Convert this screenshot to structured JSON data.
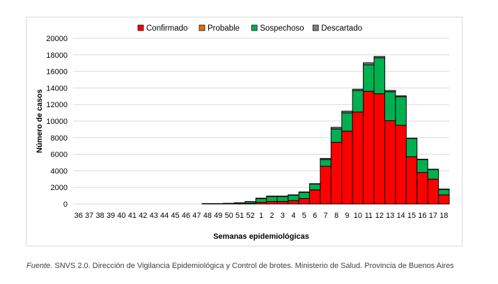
{
  "chart_data": {
    "type": "bar",
    "stacked": true,
    "title": "",
    "xlabel": "Semanas epidemiológicas",
    "ylabel": "Número de casos",
    "ylim": [
      0,
      20000
    ],
    "yticks": [
      0,
      2000,
      4000,
      6000,
      8000,
      10000,
      12000,
      14000,
      16000,
      18000,
      20000
    ],
    "grid": true,
    "legend": "top",
    "categories": [
      "36",
      "37",
      "38",
      "39",
      "40",
      "41",
      "42",
      "43",
      "44",
      "45",
      "46",
      "47",
      "48",
      "49",
      "50",
      "51",
      "52",
      "1",
      "2",
      "3",
      "4",
      "5",
      "6",
      "7",
      "8",
      "9",
      "10",
      "11",
      "12",
      "13",
      "14",
      "15",
      "16",
      "17",
      "18"
    ],
    "series": [
      {
        "name": "Confirmado",
        "color": "#ff0000",
        "values": [
          0,
          0,
          0,
          0,
          0,
          0,
          0,
          0,
          0,
          0,
          0,
          0,
          20,
          20,
          30,
          50,
          100,
          200,
          300,
          300,
          400,
          650,
          1700,
          4550,
          7450,
          8800,
          11100,
          13600,
          13300,
          10050,
          9500,
          5700,
          3800,
          3000,
          1100
        ]
      },
      {
        "name": "Probable",
        "color": "#e46c0a",
        "values": [
          0,
          0,
          0,
          0,
          0,
          0,
          0,
          0,
          0,
          0,
          0,
          0,
          0,
          0,
          0,
          0,
          0,
          0,
          0,
          0,
          0,
          0,
          0,
          0,
          0,
          0,
          0,
          0,
          0,
          0,
          0,
          0,
          0,
          0,
          0
        ]
      },
      {
        "name": "Sospechoso",
        "color": "#00b050",
        "values": [
          0,
          0,
          0,
          0,
          0,
          0,
          0,
          0,
          0,
          0,
          0,
          0,
          30,
          30,
          50,
          100,
          200,
          450,
          600,
          600,
          650,
          750,
          700,
          800,
          1600,
          2200,
          2600,
          3200,
          4350,
          3500,
          3450,
          2200,
          1550,
          1150,
          650
        ]
      },
      {
        "name": "Descartado",
        "color": "#808080",
        "values": [
          0,
          0,
          0,
          0,
          0,
          0,
          0,
          0,
          0,
          0,
          0,
          0,
          0,
          0,
          0,
          0,
          0,
          50,
          50,
          50,
          50,
          50,
          50,
          150,
          200,
          200,
          150,
          250,
          150,
          150,
          100,
          50,
          50,
          50,
          50
        ]
      }
    ]
  },
  "footer": {
    "source_label": "Fuente",
    "source_text": ". SNVS 2.0. Dirección de Vigilancia Epidemiológica y Control de brotes. Ministerio de Salud. Provincia de Buenos Aires"
  }
}
